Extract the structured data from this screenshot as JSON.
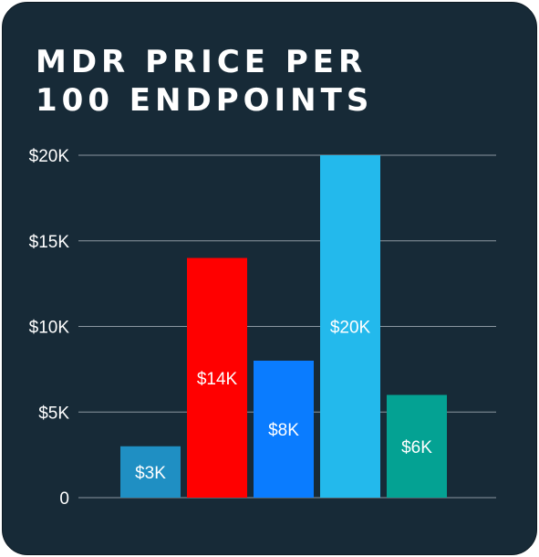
{
  "chart_data": {
    "type": "bar",
    "title_lines": [
      "MDR PRICE PER",
      "100 ENDPOINTS"
    ],
    "categories": [
      "",
      "",
      "",
      "",
      ""
    ],
    "values": [
      3000,
      14000,
      8000,
      20000,
      6000
    ],
    "data_labels": [
      "$3K",
      "$14K",
      "$8K",
      "$20K",
      "$6K"
    ],
    "bar_colors": [
      "#1f8fc3",
      "#ff0000",
      "#0a7cff",
      "#23b9ec",
      "#04a293"
    ],
    "ylim": [
      0,
      20000
    ],
    "yticks": [
      0,
      5000,
      10000,
      15000,
      20000
    ],
    "ytick_labels": [
      "0",
      "$5K",
      "$10K",
      "$15K",
      "$20K"
    ],
    "grid": true,
    "background_color": "#172a37",
    "grid_color": "#8b97a0",
    "text_color": "#ffffff"
  }
}
